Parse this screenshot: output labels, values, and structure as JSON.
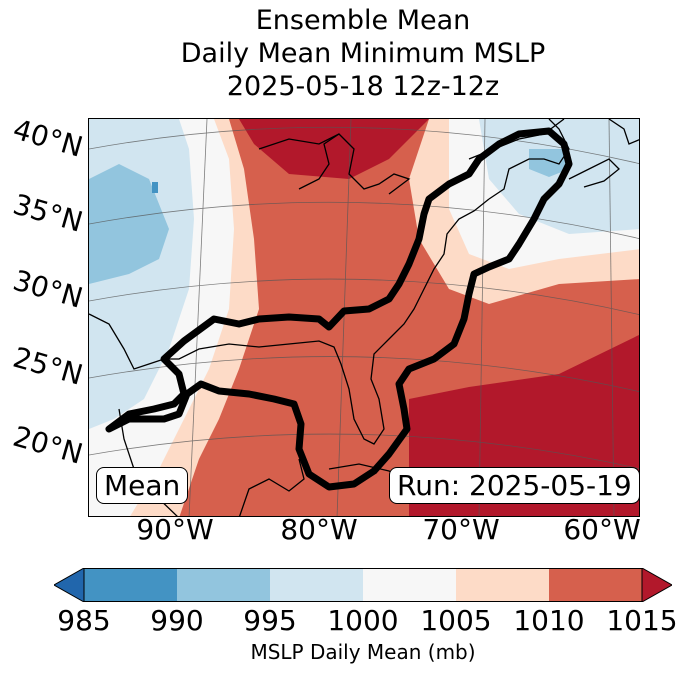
{
  "title": {
    "line1": "Ensemble Mean",
    "line2": "Daily Mean Minimum MSLP",
    "line3": "2025-05-18 12z-12z"
  },
  "map": {
    "lat_labels": [
      "40°N",
      "35°N",
      "30°N",
      "25°N",
      "20°N"
    ],
    "lon_labels": [
      "90°W",
      "80°W",
      "70°W",
      "60°W"
    ],
    "mean_label": "Mean",
    "run_label": "Run: 2025-05-19"
  },
  "colorbar": {
    "ticks": [
      "985",
      "990",
      "995",
      "1000",
      "1005",
      "1010",
      "1015"
    ],
    "label": "MSLP Daily Mean (mb)",
    "colors": {
      "below": "#2166ac",
      "985-990": "#4393c3",
      "990-995": "#92c5de",
      "995-1000": "#d1e5f0",
      "1000-1005": "#f7f7f7",
      "1005-1010": "#fddbc7",
      "1010-1015": "#d6604d",
      "above": "#b2182b"
    }
  }
}
